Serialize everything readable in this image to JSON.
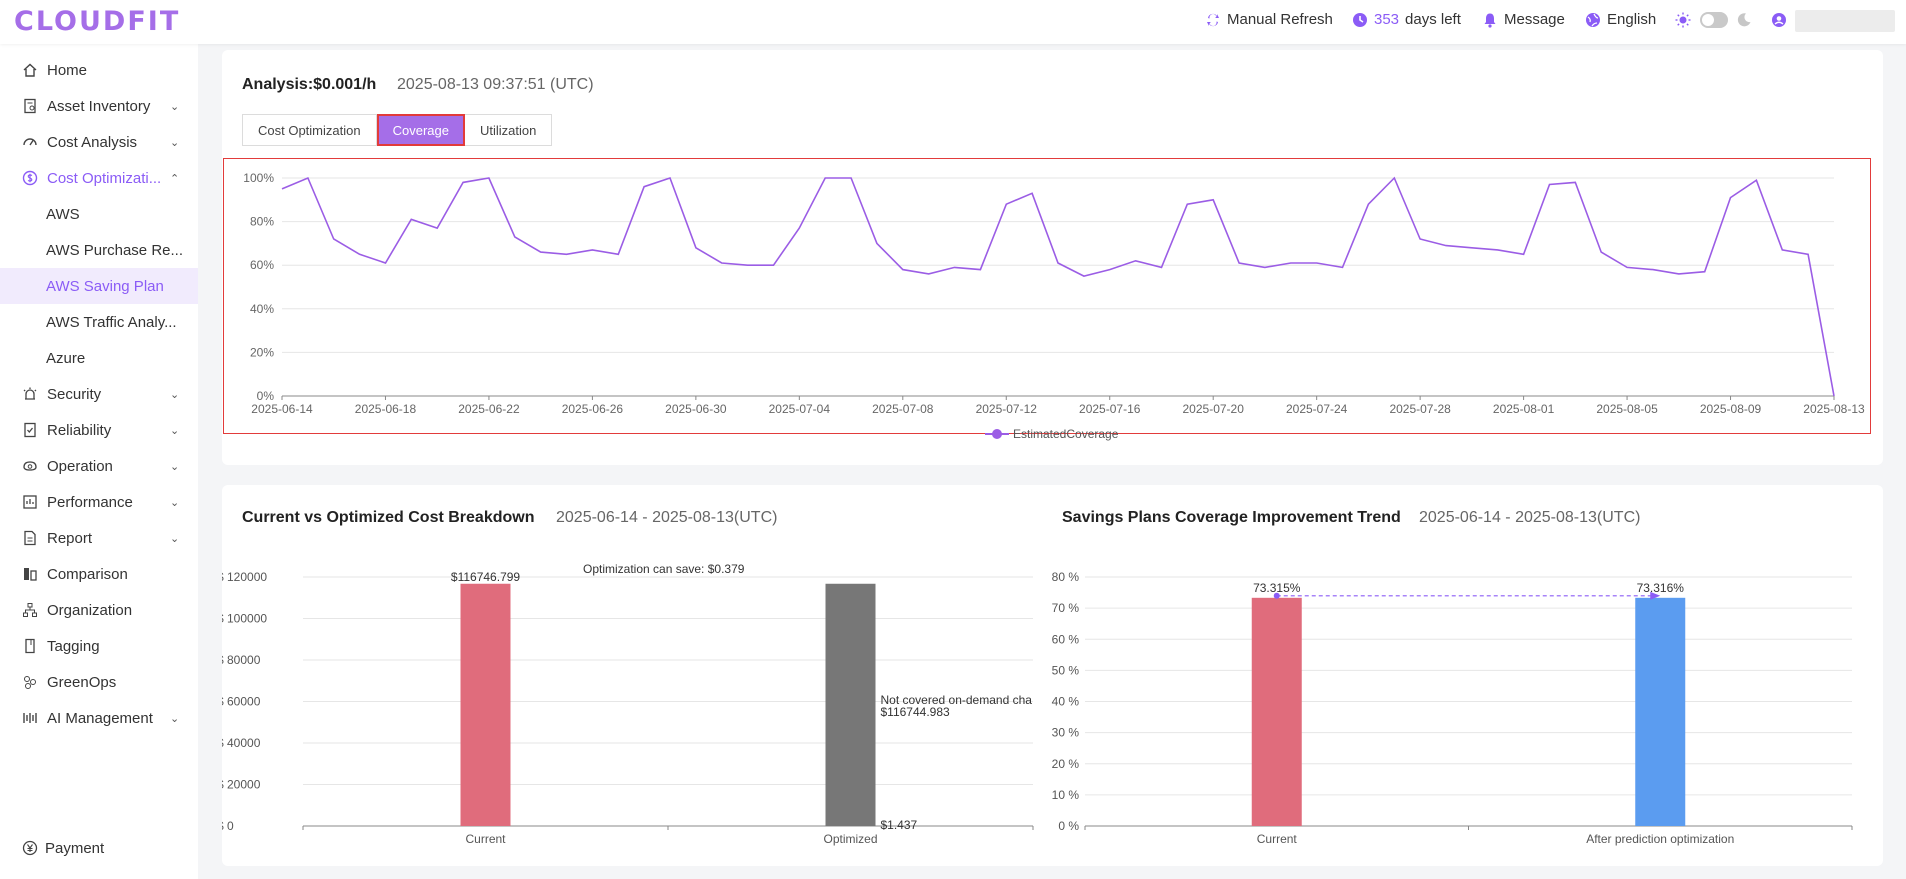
{
  "header": {
    "logo": "CLOUDFIT",
    "refresh_label": "Manual Refresh",
    "days_count": "353",
    "days_label": "days left",
    "message_label": "Message",
    "language_label": "English"
  },
  "sidebar": {
    "items": [
      {
        "label": "Home",
        "icon": "home-icon",
        "chevron": false
      },
      {
        "label": "Asset Inventory",
        "icon": "asset-icon",
        "chevron": true
      },
      {
        "label": "Cost Analysis",
        "icon": "dashboard-icon",
        "chevron": true
      },
      {
        "label": "Cost Optimizati...",
        "icon": "dollar-icon",
        "chevron": true
      },
      {
        "label": "AWS",
        "sub": true
      },
      {
        "label": "AWS Purchase Re...",
        "sub": true
      },
      {
        "label": "AWS Saving Plan",
        "sub": true
      },
      {
        "label": "AWS Traffic Analy...",
        "sub": true
      },
      {
        "label": "Azure",
        "sub": true
      },
      {
        "label": "Security",
        "icon": "security-icon",
        "chevron": true
      },
      {
        "label": "Reliability",
        "icon": "reliability-icon",
        "chevron": true
      },
      {
        "label": "Operation",
        "icon": "operation-icon",
        "chevron": true
      },
      {
        "label": "Performance",
        "icon": "performance-icon",
        "chevron": true
      },
      {
        "label": "Report",
        "icon": "report-icon",
        "chevron": true
      },
      {
        "label": "Comparison",
        "icon": "comparison-icon",
        "chevron": false
      },
      {
        "label": "Organization",
        "icon": "organization-icon",
        "chevron": false
      },
      {
        "label": "Tagging",
        "icon": "tag-icon",
        "chevron": false
      },
      {
        "label": "GreenOps",
        "icon": "greenops-icon",
        "chevron": false
      },
      {
        "label": "AI Management",
        "icon": "ai-icon",
        "chevron": true
      }
    ],
    "payment_label": "Payment"
  },
  "analysis": {
    "title": "Analysis:$0.001/h",
    "timestamp": "2025-08-13 09:37:51 (UTC)",
    "tabs": [
      "Cost Optimization",
      "Coverage",
      "Utilization"
    ],
    "active_tab": "Coverage"
  },
  "breakdown": {
    "title": "Current vs Optimized Cost Breakdown",
    "range": "2025-06-14 - 2025-08-13(UTC)"
  },
  "trend": {
    "title": "Savings Plans Coverage Improvement Trend",
    "range": "2025-06-14 - 2025-08-13(UTC)"
  },
  "colors": {
    "accent": "#a56ee8",
    "line": "#9b5de5",
    "bar_current": "#e06c7c",
    "bar_optimized": "#777777",
    "bar_after": "#5b9cf0"
  },
  "chart_data": [
    {
      "type": "line",
      "series": [
        {
          "name": "EstimatedCoverage",
          "x_start": "2025-06-14",
          "values": [
            95,
            100,
            72,
            65,
            61,
            81,
            77,
            98,
            100,
            73,
            66,
            65,
            67,
            65,
            96,
            100,
            68,
            61,
            60,
            60,
            77,
            100,
            100,
            70,
            58,
            56,
            59,
            58,
            88,
            93,
            61,
            55,
            58,
            62,
            59,
            88,
            90,
            61,
            59,
            61,
            61,
            59,
            88,
            100,
            72,
            69,
            68,
            67,
            65,
            97,
            98,
            66,
            59,
            58,
            56,
            57,
            91,
            99,
            67,
            65,
            0
          ]
        }
      ],
      "x_ticks": [
        "2025-06-14",
        "2025-06-18",
        "2025-06-22",
        "2025-06-26",
        "2025-06-30",
        "2025-07-04",
        "2025-07-08",
        "2025-07-12",
        "2025-07-16",
        "2025-07-20",
        "2025-07-24",
        "2025-07-28",
        "2025-08-01",
        "2025-08-05",
        "2025-08-09",
        "2025-08-13"
      ],
      "y_ticks": [
        "0%",
        "20%",
        "40%",
        "60%",
        "80%",
        "100%"
      ],
      "ylim": [
        0,
        100
      ]
    },
    {
      "type": "bar",
      "categories": [
        "Current",
        "Optimized"
      ],
      "series": [
        {
          "name": "",
          "values": [
            116746.799,
            116744.983
          ]
        }
      ],
      "y_ticks": [
        "$ 0",
        "$ 20000",
        "$ 40000",
        "$ 60000",
        "$ 80000",
        "$ 100000",
        "$ 120000"
      ],
      "ylim": [
        0,
        120000
      ],
      "labels": {
        "current_value": "$116746.799",
        "saving": "Optimization can save: $0.379",
        "not_covered_label": "Not covered on-demand cha",
        "not_covered_value": "$116744.983",
        "covered_value": "$1.437"
      }
    },
    {
      "type": "bar",
      "categories": [
        "Current",
        "After prediction optimization"
      ],
      "series": [
        {
          "name": "",
          "values": [
            73.315,
            73.316
          ]
        }
      ],
      "value_labels": [
        "73.315%",
        "73.316%"
      ],
      "y_ticks": [
        "0 %",
        "10 %",
        "20 %",
        "30 %",
        "40 %",
        "50 %",
        "60 %",
        "70 %",
        "80 %"
      ],
      "ylim": [
        0,
        80
      ]
    }
  ]
}
